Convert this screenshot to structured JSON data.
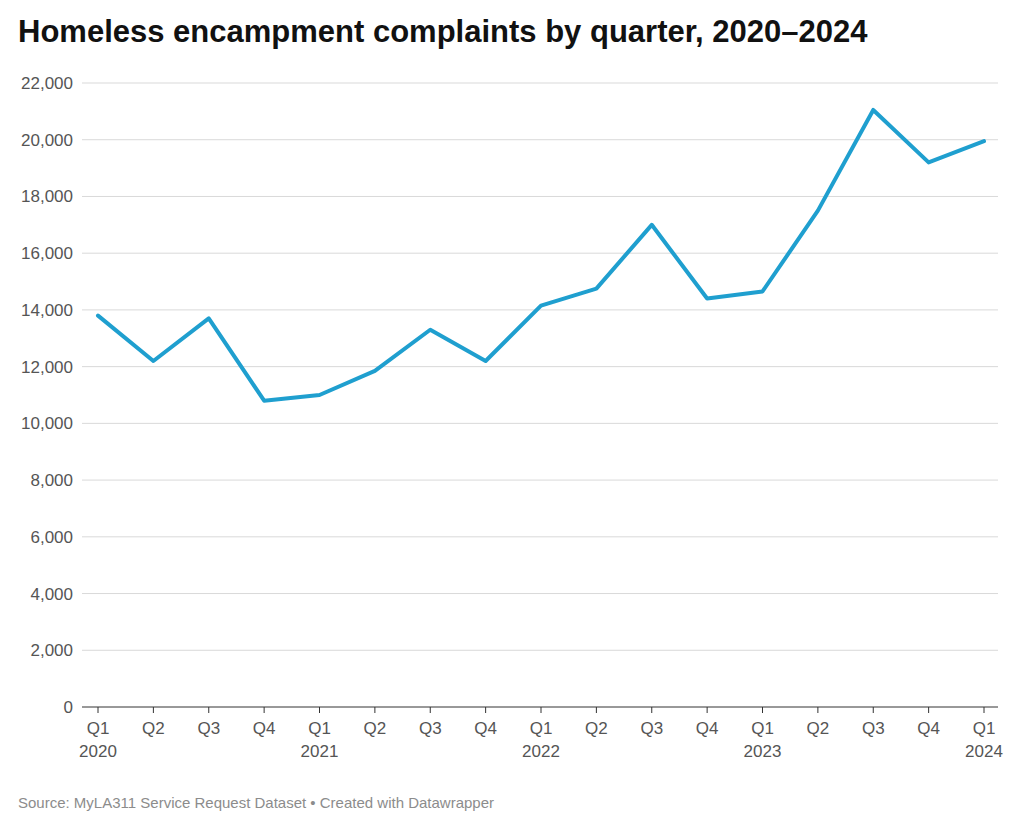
{
  "chart_data": {
    "type": "line",
    "title": "Homeless encampment complaints by quarter, 2020–2024",
    "source": "Source: MyLA311 Service Request Dataset • Created with Datawrapper",
    "categories": [
      "Q1\n2020",
      "Q2",
      "Q3",
      "Q4",
      "Q1\n2021",
      "Q2",
      "Q3",
      "Q4",
      "Q1\n2022",
      "Q2",
      "Q3",
      "Q4",
      "Q1\n2023",
      "Q2",
      "Q3",
      "Q4",
      "Q1\n2024"
    ],
    "values": [
      13800,
      12200,
      13700,
      10800,
      11000,
      11850,
      13300,
      12200,
      14150,
      14750,
      17000,
      14400,
      14650,
      17500,
      21050,
      19200,
      19950
    ],
    "color": "#1f9fcf",
    "ylim": [
      0,
      22000
    ],
    "yticks": [
      0,
      {
        "value": 2000,
        "label": "2,000"
      },
      {
        "value": 4000,
        "label": "4,000"
      },
      {
        "value": 6000,
        "label": "6,000"
      },
      {
        "value": 8000,
        "label": "8,000"
      },
      {
        "value": 10000,
        "label": "10,000"
      },
      {
        "value": 12000,
        "label": "12,000"
      },
      {
        "value": 14000,
        "label": "14,000"
      },
      {
        "value": 16000,
        "label": "16,000"
      },
      {
        "value": 18000,
        "label": "18,000"
      },
      {
        "value": 20000,
        "label": "20,000"
      },
      {
        "value": 22000,
        "label": "22,000"
      }
    ],
    "grid": true
  }
}
